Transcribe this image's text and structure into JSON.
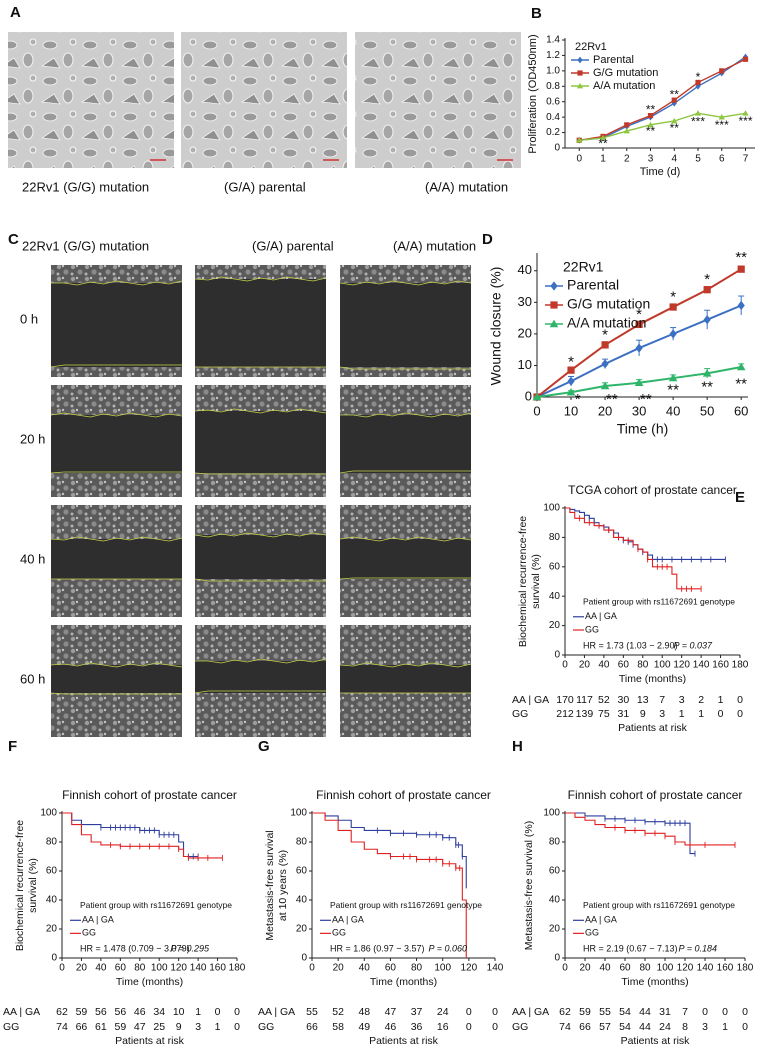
{
  "panel_a": {
    "label": "A",
    "captions": [
      "22Rv1  (G/G) mutation",
      "(G/A) parental",
      "(A/A) mutation"
    ]
  },
  "panel_c": {
    "label": "C",
    "headers": [
      "22Rv1  (G/G) mutation",
      "(G/A) parental",
      "(A/A) mutation"
    ],
    "rows": [
      "0 h",
      "20 h",
      "40 h",
      "60 h"
    ]
  },
  "chart_data": [
    {
      "type": "line",
      "label": "B",
      "legend_title": "22Rv1",
      "xlabel": "Time (d)",
      "ylabel": "Proliferation (OD450nm)",
      "x": [
        0,
        1,
        2,
        3,
        4,
        5,
        6,
        7
      ],
      "xlim": [
        -0.6,
        7.4
      ],
      "xticks": [
        0,
        1,
        2,
        3,
        4,
        5,
        6,
        7
      ],
      "ylim": [
        0,
        1.4
      ],
      "yticks": [
        0,
        0.2,
        0.4,
        0.6,
        0.8,
        {
          "value": 1,
          "label": "1.0"
        },
        1.2,
        1.4
      ],
      "series": [
        {
          "name": "Parental",
          "color": "#3b70c2",
          "marker": "diamond",
          "values": [
            0.1,
            0.13,
            0.28,
            0.4,
            0.58,
            0.8,
            0.97,
            1.18
          ]
        },
        {
          "name": "G/G mutation",
          "color": "#c0392b",
          "marker": "square",
          "values": [
            0.1,
            0.15,
            0.3,
            0.42,
            0.62,
            0.85,
            1.0,
            1.15
          ]
        },
        {
          "name": "A/A mutation",
          "color": "#8dc63f",
          "marker": "triangle",
          "values": [
            0.1,
            0.13,
            0.22,
            0.3,
            0.35,
            0.45,
            0.4,
            0.45
          ]
        }
      ],
      "annotations": [
        {
          "text": "**",
          "x": 1,
          "y": 0.05
        },
        {
          "text": "**",
          "x": 3,
          "y": 0.49
        },
        {
          "text": "**",
          "x": 3,
          "y": 0.21
        },
        {
          "text": "**",
          "x": 4,
          "y": 0.68
        },
        {
          "text": "**",
          "x": 4,
          "y": 0.25
        },
        {
          "text": "*",
          "x": 5,
          "y": 0.91
        },
        {
          "text": "***",
          "x": 5,
          "y": 0.33
        },
        {
          "text": "***",
          "x": 6,
          "y": 0.29
        },
        {
          "text": "***",
          "x": 7,
          "y": 0.34
        }
      ]
    },
    {
      "type": "line",
      "label": "D",
      "legend_title": "22Rv1",
      "xlabel": "Time (h)",
      "ylabel": "Wound closure (%)",
      "x": [
        0,
        10,
        20,
        30,
        40,
        50,
        60
      ],
      "xlim": [
        0,
        62
      ],
      "xticks": [
        0,
        10,
        20,
        30,
        40,
        50,
        60
      ],
      "ylim": [
        0,
        45
      ],
      "yticks": [
        0,
        10,
        20,
        30,
        40
      ],
      "series": [
        {
          "name": "Parental",
          "color": "#3b70c2",
          "marker": "diamond",
          "values": [
            0,
            5,
            10.5,
            15.5,
            20,
            24.5,
            29
          ],
          "errors": [
            0,
            1.5,
            1.5,
            2.5,
            2,
            3,
            3
          ]
        },
        {
          "name": "G/G mutation",
          "color": "#c0392b",
          "marker": "square",
          "values": [
            0,
            8.5,
            16.5,
            23,
            28.5,
            34,
            40.5
          ],
          "errors": [
            0,
            1,
            1,
            1,
            1,
            1,
            1
          ]
        },
        {
          "name": "A/A mutation",
          "color": "#2fb56a",
          "marker": "triangle",
          "values": [
            0,
            1.5,
            3.5,
            4.5,
            6,
            7.5,
            9.5
          ],
          "errors": [
            0,
            0.5,
            1,
            1,
            1,
            1.5,
            1
          ]
        }
      ],
      "annotations": [
        {
          "text": "*",
          "x": 10,
          "y": 11
        },
        {
          "text": "*",
          "x": 20,
          "y": 19.5
        },
        {
          "text": "*",
          "x": 30,
          "y": 26
        },
        {
          "text": "*",
          "x": 40,
          "y": 31.5
        },
        {
          "text": "*",
          "x": 50,
          "y": 37
        },
        {
          "text": "**",
          "x": 60,
          "y": 44
        },
        {
          "text": "*",
          "x": 12,
          "y": -1
        },
        {
          "text": "**",
          "x": 22,
          "y": -1
        },
        {
          "text": "**",
          "x": 32,
          "y": -1
        },
        {
          "text": "**",
          "x": 40,
          "y": 2
        },
        {
          "text": "**",
          "x": 50,
          "y": 3
        },
        {
          "text": "**",
          "x": 60,
          "y": 4
        }
      ]
    },
    {
      "type": "survival",
      "label": "E",
      "title": "TCGA cohort of prostate cancer",
      "ylabel": [
        "Biochemical recurrence-free",
        "survival (%)"
      ],
      "xlabel": "Time (months)",
      "xlim": [
        0,
        180
      ],
      "xticks": [
        0,
        20,
        40,
        60,
        80,
        100,
        120,
        140,
        160,
        180
      ],
      "ylim": [
        0,
        100
      ],
      "yticks": [
        0,
        20,
        40,
        60,
        80,
        100
      ],
      "legend_title": "Patient group with rs11672691 genotype",
      "hr": "HR = 1.73 (1.03 − 2.90)",
      "p": "P = 0.037",
      "risk_title": "Patients at risk",
      "series": [
        {
          "name": "AA | GA",
          "color": "#2c3e9e",
          "x": [
            0,
            5,
            10,
            15,
            20,
            25,
            30,
            35,
            40,
            45,
            50,
            55,
            60,
            65,
            70,
            75,
            80,
            85,
            90,
            165
          ],
          "values": [
            100,
            99,
            98,
            97,
            95,
            93,
            90,
            88,
            87,
            85,
            83,
            80,
            78,
            77,
            75,
            72,
            70,
            68,
            65,
            65
          ],
          "censored": [
            20,
            25,
            30,
            35,
            40,
            45,
            50,
            55,
            60,
            65,
            70,
            80,
            85,
            95,
            100,
            110,
            120,
            130,
            140,
            150,
            165
          ],
          "at_risk": [
            170,
            117,
            52,
            30,
            13,
            7,
            3,
            2,
            1,
            0
          ]
        },
        {
          "name": "GG",
          "color": "#e02020",
          "x": [
            0,
            5,
            10,
            20,
            30,
            40,
            50,
            60,
            70,
            75,
            80,
            85,
            90,
            110,
            115,
            140
          ],
          "values": [
            100,
            97,
            93,
            90,
            88,
            85,
            80,
            78,
            75,
            72,
            70,
            65,
            60,
            55,
            45,
            45
          ],
          "censored": [
            15,
            25,
            35,
            45,
            55,
            65,
            75,
            85,
            95,
            100,
            105,
            120,
            125,
            130,
            140
          ],
          "at_risk": [
            212,
            139,
            75,
            31,
            9,
            3,
            1,
            1,
            0,
            0
          ]
        }
      ]
    },
    {
      "type": "survival",
      "label": "F",
      "title": "Finnish cohort of prostate cancer",
      "ylabel": [
        "Biochemical recurrence-free",
        "survival (%)"
      ],
      "xlabel": "Time (months)",
      "xlim": [
        0,
        180
      ],
      "xticks": [
        0,
        20,
        40,
        60,
        80,
        100,
        120,
        140,
        160,
        180
      ],
      "ylim": [
        0,
        100
      ],
      "yticks": [
        0,
        20,
        40,
        60,
        80,
        100
      ],
      "legend_title": "Patient group with rs11672691 genotype",
      "hr": "HR = 1.478 (0.709 − 3.079)",
      "p": "P = 0.295",
      "risk_title": "Patients at risk",
      "series": [
        {
          "name": "AA | GA",
          "color": "#2c3e9e",
          "x": [
            0,
            10,
            20,
            40,
            80,
            100,
            120,
            125,
            140
          ],
          "values": [
            100,
            95,
            92,
            90,
            88,
            85,
            80,
            70,
            70
          ],
          "censored": [
            40,
            50,
            55,
            60,
            65,
            70,
            75,
            80,
            85,
            90,
            95,
            100,
            105,
            110,
            115,
            130,
            135,
            140
          ],
          "at_risk": [
            62,
            59,
            56,
            56,
            46,
            34,
            10,
            1,
            0,
            0
          ]
        },
        {
          "name": "GG",
          "color": "#e02020",
          "x": [
            0,
            10,
            20,
            30,
            40,
            60,
            120,
            125,
            130,
            165
          ],
          "values": [
            100,
            92,
            85,
            80,
            78,
            77,
            75,
            70,
            69,
            69
          ],
          "censored": [
            50,
            60,
            70,
            80,
            90,
            100,
            110,
            120,
            130,
            140,
            150,
            165
          ],
          "at_risk": [
            74,
            66,
            61,
            59,
            47,
            25,
            9,
            3,
            1,
            0
          ]
        }
      ]
    },
    {
      "type": "survival",
      "label": "G",
      "title": "Finnish cohort of prostate cancer",
      "ylabel": [
        "Metastasis-free survival",
        "at 10 years (%)"
      ],
      "xlabel": "Time (months)",
      "xlim": [
        0,
        140
      ],
      "xticks": [
        0,
        20,
        40,
        60,
        80,
        100,
        120,
        140
      ],
      "ylim": [
        0,
        100
      ],
      "yticks": [
        0,
        20,
        40,
        60,
        80,
        100
      ],
      "legend_title": "Patient group with rs11672691 genotype",
      "hr": "HR = 1.86 (0.97 − 3.57)",
      "p": "P = 0.060",
      "risk_title": "Patients at risk",
      "series": [
        {
          "name": "AA | GA",
          "color": "#2c3e9e",
          "x": [
            0,
            10,
            20,
            30,
            40,
            60,
            80,
            100,
            110,
            115,
            118
          ],
          "values": [
            100,
            98,
            95,
            90,
            88,
            86,
            85,
            83,
            78,
            70,
            48
          ],
          "censored": [
            50,
            60,
            70,
            80,
            90,
            95,
            100,
            105,
            110,
            112,
            115
          ],
          "at_risk": [
            55,
            52,
            48,
            47,
            37,
            24,
            0,
            0
          ]
        },
        {
          "name": "GG",
          "color": "#e02020",
          "x": [
            0,
            10,
            20,
            30,
            40,
            50,
            60,
            80,
            100,
            110,
            115,
            118
          ],
          "values": [
            100,
            95,
            88,
            80,
            75,
            72,
            70,
            68,
            65,
            62,
            40,
            0
          ],
          "censored": [
            60,
            70,
            75,
            80,
            90,
            95,
            100,
            105,
            110,
            113
          ],
          "at_risk": [
            66,
            58,
            49,
            46,
            36,
            16,
            0,
            0
          ]
        }
      ]
    },
    {
      "type": "survival",
      "label": "H",
      "title": "Finnish cohort of prostate cancer",
      "ylabel": [
        "Metastasis-free survival (%)"
      ],
      "xlabel": "Time (months)",
      "xlim": [
        0,
        180
      ],
      "xticks": [
        0,
        20,
        40,
        60,
        80,
        100,
        120,
        140,
        160,
        180
      ],
      "ylim": [
        0,
        100
      ],
      "yticks": [
        0,
        20,
        40,
        60,
        80,
        100
      ],
      "legend_title": "Patient group with rs11672691 genotype",
      "hr": "HR = 2.19 (0.67 − 7.13)",
      "p": "P = 0.184",
      "risk_title": "Patients at risk",
      "series": [
        {
          "name": "AA | GA",
          "color": "#2c3e9e",
          "x": [
            0,
            20,
            40,
            60,
            80,
            100,
            125,
            130
          ],
          "values": [
            100,
            98,
            96,
            95,
            94,
            93,
            72,
            72
          ],
          "censored": [
            40,
            50,
            60,
            70,
            80,
            90,
            100,
            105,
            110,
            115,
            120,
            130
          ],
          "at_risk": [
            62,
            59,
            55,
            54,
            44,
            31,
            7,
            0,
            0,
            0
          ]
        },
        {
          "name": "GG",
          "color": "#e02020",
          "x": [
            0,
            10,
            20,
            30,
            40,
            60,
            80,
            100,
            110,
            120,
            170
          ],
          "values": [
            100,
            97,
            95,
            92,
            90,
            88,
            86,
            84,
            80,
            78,
            78
          ],
          "censored": [
            50,
            60,
            70,
            80,
            90,
            100,
            110,
            125,
            140,
            170
          ],
          "at_risk": [
            74,
            66,
            57,
            54,
            44,
            24,
            8,
            3,
            1,
            0
          ]
        }
      ]
    }
  ]
}
